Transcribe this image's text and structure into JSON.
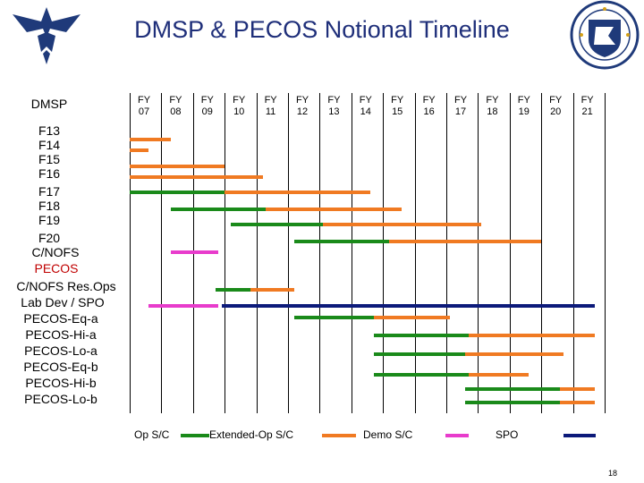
{
  "title": "DMSP & PECOS Notional Timeline",
  "page_number": "18",
  "colors": {
    "op": "#1a8a1a",
    "extended": "#f07a22",
    "demo": "#e83ccc",
    "spo": "#0c1a7a",
    "title": "#1f2f7a"
  },
  "icons": {
    "left_logo": "air-force-wings-logo",
    "right_seal": "air-force-research-seal"
  },
  "chart_data": {
    "type": "gantt",
    "fiscal_years": [
      "FY 07",
      "FY 08",
      "FY 09",
      "FY 10",
      "FY 11",
      "FY 12",
      "FY 13",
      "FY 14",
      "FY 15",
      "FY 16",
      "FY 17",
      "FY 18",
      "FY 19",
      "FY 20",
      "FY 21"
    ],
    "start_year": 2007,
    "end_year": 2022,
    "section_labels": [
      "DMSP",
      "PECOS"
    ],
    "rows": [
      {
        "label": "F13",
        "bars": [
          {
            "kind": "extended",
            "start": 2007.0,
            "end": 2008.3
          }
        ]
      },
      {
        "label": "F14",
        "bars": [
          {
            "kind": "extended",
            "start": 2007.0,
            "end": 2007.6
          }
        ]
      },
      {
        "label": "F15",
        "bars": [
          {
            "kind": "extended",
            "start": 2007.0,
            "end": 2010.0
          }
        ]
      },
      {
        "label": "F16",
        "bars": [
          {
            "kind": "extended",
            "start": 2007.0,
            "end": 2011.2
          }
        ]
      },
      {
        "label": "F17",
        "bars": [
          {
            "kind": "op",
            "start": 2007.0,
            "end": 2010.0
          },
          {
            "kind": "extended",
            "start": 2010.0,
            "end": 2014.6
          }
        ]
      },
      {
        "label": "F18",
        "bars": [
          {
            "kind": "op",
            "start": 2008.3,
            "end": 2011.3
          },
          {
            "kind": "extended",
            "start": 2011.3,
            "end": 2015.6
          }
        ]
      },
      {
        "label": "F19",
        "bars": [
          {
            "kind": "op",
            "start": 2010.2,
            "end": 2013.1
          },
          {
            "kind": "extended",
            "start": 2013.1,
            "end": 2018.1
          }
        ]
      },
      {
        "label": "F20",
        "bars": [
          {
            "kind": "op",
            "start": 2012.2,
            "end": 2015.2
          },
          {
            "kind": "extended",
            "start": 2015.2,
            "end": 2020.0
          }
        ]
      },
      {
        "label": "C/NOFS",
        "bars": [
          {
            "kind": "demo",
            "start": 2008.3,
            "end": 2009.8
          }
        ]
      },
      {
        "label": "C/NOFS Res.Ops",
        "bars": [
          {
            "kind": "op",
            "start": 2009.7,
            "end": 2010.8
          },
          {
            "kind": "extended",
            "start": 2010.8,
            "end": 2012.2
          }
        ]
      },
      {
        "label": "Lab Dev / SPO",
        "bars": [
          {
            "kind": "demo",
            "start": 2007.6,
            "end": 2009.8
          },
          {
            "kind": "spo",
            "start": 2009.9,
            "end": 2021.7
          }
        ]
      },
      {
        "label": "PECOS-Eq-a",
        "bars": [
          {
            "kind": "op",
            "start": 2012.2,
            "end": 2014.7
          },
          {
            "kind": "extended",
            "start": 2014.7,
            "end": 2017.1
          }
        ]
      },
      {
        "label": "PECOS-Hi-a",
        "bars": [
          {
            "kind": "op",
            "start": 2014.7,
            "end": 2017.7
          },
          {
            "kind": "extended",
            "start": 2017.7,
            "end": 2021.7
          }
        ]
      },
      {
        "label": "PECOS-Lo-a",
        "bars": [
          {
            "kind": "op",
            "start": 2014.7,
            "end": 2017.6
          },
          {
            "kind": "extended",
            "start": 2017.6,
            "end": 2020.7
          }
        ]
      },
      {
        "label": "PECOS-Eq-b",
        "bars": [
          {
            "kind": "op",
            "start": 2014.7,
            "end": 2017.7
          },
          {
            "kind": "extended",
            "start": 2017.7,
            "end": 2019.6
          }
        ]
      },
      {
        "label": "PECOS-Hi-b",
        "bars": [
          {
            "kind": "op",
            "start": 2017.6,
            "end": 2020.6
          },
          {
            "kind": "extended",
            "start": 2020.6,
            "end": 2021.7
          }
        ]
      },
      {
        "label": "PECOS-Lo-b",
        "bars": [
          {
            "kind": "op",
            "start": 2017.6,
            "end": 2020.6
          },
          {
            "kind": "extended",
            "start": 2020.6,
            "end": 2021.7
          }
        ]
      }
    ],
    "legend": [
      {
        "kind": "op",
        "label": "Op S/C"
      },
      {
        "kind": "extended",
        "label": "Extended-Op S/C"
      },
      {
        "kind": "demo",
        "label": "Demo S/C"
      },
      {
        "kind": "spo",
        "label": "SPO"
      }
    ]
  }
}
